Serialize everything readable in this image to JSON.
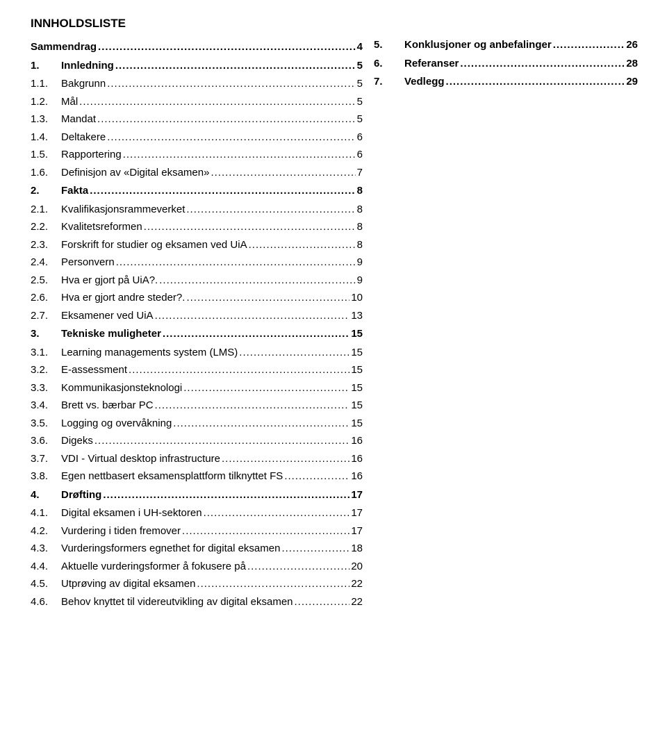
{
  "heading": "INNHOLDSLISTE",
  "font": {
    "family": "Arial",
    "body_size_pt": 11,
    "heading_size_pt": 13
  },
  "colors": {
    "text": "#000000",
    "background": "#ffffff"
  },
  "left": [
    {
      "num": "",
      "label": "Sammendrag",
      "page": "4",
      "bold": true
    },
    {
      "num": "1.",
      "label": "Innledning",
      "page": "5",
      "bold": true
    },
    {
      "num": "1.1.",
      "label": "Bakgrunn",
      "page": "5",
      "bold": false
    },
    {
      "num": "1.2.",
      "label": "Mål",
      "page": "5",
      "bold": false
    },
    {
      "num": "1.3.",
      "label": "Mandat",
      "page": "5",
      "bold": false
    },
    {
      "num": "1.4.",
      "label": "Deltakere",
      "page": "6",
      "bold": false
    },
    {
      "num": "1.5.",
      "label": "Rapportering",
      "page": "6",
      "bold": false
    },
    {
      "num": "1.6.",
      "label": "Definisjon av «Digital eksamen»",
      "page": "7",
      "bold": false
    },
    {
      "num": "2.",
      "label": "Fakta",
      "page": "8",
      "bold": true
    },
    {
      "num": "2.1.",
      "label": "Kvalifikasjonsrammeverket",
      "page": "8",
      "bold": false
    },
    {
      "num": "2.2.",
      "label": "Kvalitetsreformen",
      "page": "8",
      "bold": false
    },
    {
      "num": "2.3.",
      "label": "Forskrift for studier og eksamen ved UiA",
      "page": "8",
      "bold": false
    },
    {
      "num": "2.4.",
      "label": "Personvern",
      "page": "9",
      "bold": false
    },
    {
      "num": "2.5.",
      "label": "Hva er gjort på UiA?.",
      "page": "9",
      "bold": false
    },
    {
      "num": "2.6.",
      "label": "Hva er gjort andre steder?.",
      "page": "10",
      "bold": false
    },
    {
      "num": "2.7.",
      "label": "Eksamener ved UiA",
      "page": "13",
      "bold": false
    },
    {
      "num": "3.",
      "label": "Tekniske muligheter",
      "page": "15",
      "bold": true
    },
    {
      "num": "3.1.",
      "label": "Learning managements system (LMS)",
      "page": "15",
      "bold": false
    },
    {
      "num": "3.2.",
      "label": "E-assessment",
      "page": "15",
      "bold": false
    },
    {
      "num": "3.3.",
      "label": "Kommunikasjonsteknologi",
      "page": "15",
      "bold": false
    },
    {
      "num": "3.4.",
      "label": "Brett vs. bærbar PC",
      "page": "15",
      "bold": false
    },
    {
      "num": "3.5.",
      "label": "Logging og overvåkning",
      "page": "15",
      "bold": false
    },
    {
      "num": "3.6.",
      "label": "Digeks",
      "page": "16",
      "bold": false
    },
    {
      "num": "3.7.",
      "label": "VDI - Virtual desktop infrastructure",
      "page": "16",
      "bold": false
    },
    {
      "num": "3.8.",
      "label": "Egen nettbasert eksamensplattform tilknyttet FS",
      "page": "16",
      "bold": false
    },
    {
      "num": "4.",
      "label": "Drøfting",
      "page": "17",
      "bold": true
    },
    {
      "num": "4.1.",
      "label": "Digital eksamen i UH-sektoren",
      "page": "17",
      "bold": false
    },
    {
      "num": "4.2.",
      "label": "Vurdering i tiden fremover",
      "page": "17",
      "bold": false
    },
    {
      "num": "4.3.",
      "label": "Vurderingsformers egnethet for digital eksamen",
      "page": "18",
      "bold": false
    },
    {
      "num": "4.4.",
      "label": "Aktuelle vurderingsformer å fokusere på",
      "page": "20",
      "bold": false
    },
    {
      "num": "4.5.",
      "label": "Utprøving av digital eksamen",
      "page": "22",
      "bold": false
    },
    {
      "num": "4.6.",
      "label": "Behov knyttet til videreutvikling av digital eksamen",
      "page": "22",
      "bold": false
    }
  ],
  "right": [
    {
      "num": "5.",
      "label": "Konklusjoner og anbefalinger",
      "page": "26",
      "bold": true
    },
    {
      "num": "6.",
      "label": "Referanser",
      "page": "28",
      "bold": true
    },
    {
      "num": "7.",
      "label": "Vedlegg",
      "page": "29",
      "bold": true
    }
  ]
}
